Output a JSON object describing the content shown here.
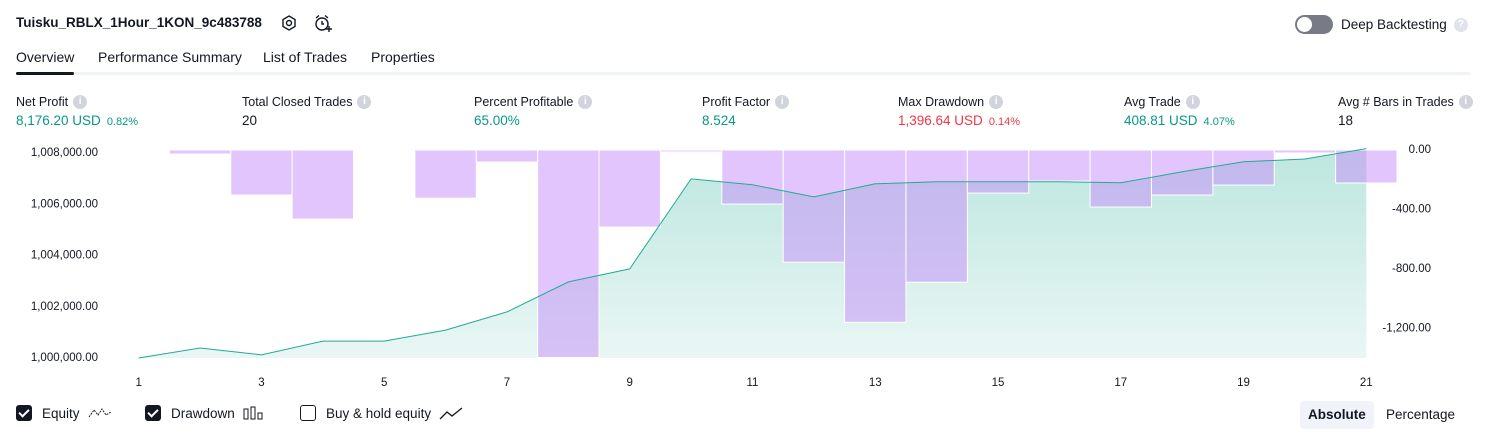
{
  "header": {
    "title": "Tuisku_RBLX_1Hour_1KON_9c483788",
    "deep_backtesting": "Deep Backtesting",
    "deep_backtesting_on": false
  },
  "tabs": [
    "Overview",
    "Performance Summary",
    "List of Trades",
    "Properties"
  ],
  "active_tab": 0,
  "stats": [
    {
      "label": "Net Profit",
      "value": "8,176.20 USD",
      "percent": "0.82%",
      "color": "#089981"
    },
    {
      "label": "Total Closed Trades",
      "value": "20",
      "color": "#131722"
    },
    {
      "label": "Percent Profitable",
      "value": "65.00%",
      "color": "#089981"
    },
    {
      "label": "Profit Factor",
      "value": "8.524",
      "color": "#089981"
    },
    {
      "label": "Max Drawdown",
      "value": "1,396.64 USD",
      "percent": "0.14%",
      "color": "#f23645"
    },
    {
      "label": "Avg Trade",
      "value": "408.81 USD",
      "percent": "4.07%",
      "color": "#089981"
    },
    {
      "label": "Avg # Bars in Trades",
      "value": "18",
      "color": "#131722"
    }
  ],
  "chart_data": {
    "type": "equity-drawdown",
    "x": [
      1,
      2,
      3,
      4,
      5,
      6,
      7,
      8,
      9,
      10,
      11,
      12,
      13,
      14,
      15,
      16,
      17,
      18,
      19,
      20,
      21
    ],
    "xlim": [
      0.5,
      21.5
    ],
    "xticks": [
      1,
      3,
      5,
      7,
      9,
      11,
      13,
      15,
      17,
      19,
      21
    ],
    "ylim": [
      1000000,
      1008120
    ],
    "yticks": [
      {
        "value": 1000000,
        "label": "1,000,000.00"
      },
      {
        "value": 1002000,
        "label": "1,002,000.00"
      },
      {
        "value": 1004000,
        "label": "1,004,000.00"
      },
      {
        "value": 1006000,
        "label": "1,006,000.00"
      },
      {
        "value": 1008000,
        "label": "1,008,000.00"
      }
    ],
    "y2lim": [
      -1400,
      0
    ],
    "y2ticks": [
      {
        "value": 0,
        "label": "0.00"
      },
      {
        "value": -400,
        "label": "-400.00"
      },
      {
        "value": -800,
        "label": "-800.00"
      },
      {
        "value": -1200,
        "label": "-1,200.00"
      }
    ],
    "series": [
      {
        "name": "Equity",
        "color": "#22ab94",
        "axis": "y",
        "checked": true,
        "values": [
          1000000,
          1000390,
          1000120,
          1000660,
          1000660,
          1001090,
          1001800,
          1002970,
          1003480,
          1006990,
          1006760,
          1006290,
          1006800,
          1006880,
          1006880,
          1006880,
          1006840,
          1007270,
          1007660,
          1007770,
          1008176.2
        ]
      },
      {
        "name": "Drawdown",
        "color": "#c68cf9",
        "axis": "y2",
        "checked": true,
        "values": [
          -7,
          -27,
          -303,
          -465,
          -7,
          -324,
          -81,
          -1396.64,
          -519,
          -13,
          -364,
          -755,
          -1160,
          -890,
          -290,
          -209,
          -384,
          -303,
          -236,
          -20,
          -222
        ]
      }
    ]
  },
  "buy_hold": {
    "label": "Buy & hold equity",
    "checked": false
  },
  "scale_modes": [
    "Absolute",
    "Percentage"
  ],
  "active_scale": 0
}
